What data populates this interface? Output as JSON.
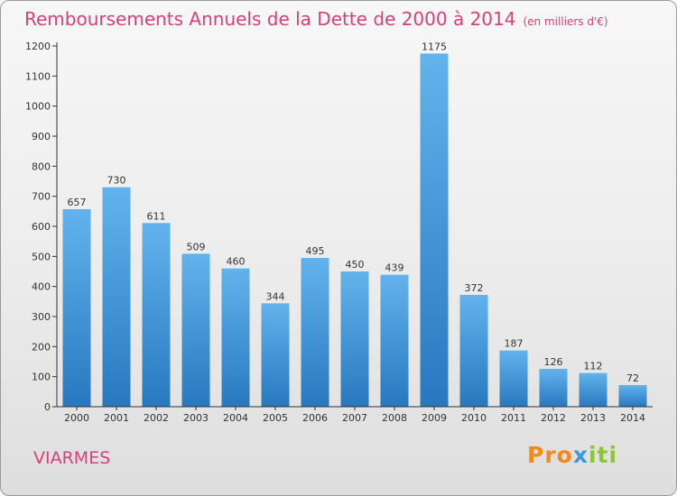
{
  "header": {
    "title": "Remboursements Annuels de la Dette de 2000 à 2014",
    "unit": "(en milliers d'€)"
  },
  "footer": {
    "place": "VIARMES",
    "logo": [
      "Pro",
      "x",
      "iti"
    ]
  },
  "colors": {
    "title": "#d4427a",
    "bar_light": "#62b3ec",
    "bar_dark": "#2878c0",
    "axis": "#333333"
  },
  "chart_data": {
    "type": "bar",
    "title": "Remboursements Annuels de la Dette de 2000 à 2014",
    "subtitle": "(en milliers d'€)",
    "categories": [
      "2000",
      "2001",
      "2002",
      "2003",
      "2004",
      "2005",
      "2006",
      "2007",
      "2008",
      "2009",
      "2010",
      "2011",
      "2012",
      "2013",
      "2014"
    ],
    "values": [
      657,
      730,
      611,
      509,
      460,
      344,
      495,
      450,
      439,
      1175,
      372,
      187,
      126,
      112,
      72
    ],
    "ylim": [
      0,
      1200
    ],
    "yticks": [
      0,
      100,
      200,
      300,
      400,
      500,
      600,
      700,
      800,
      900,
      1000,
      1100,
      1200
    ],
    "grid": false,
    "data_labels": true
  }
}
